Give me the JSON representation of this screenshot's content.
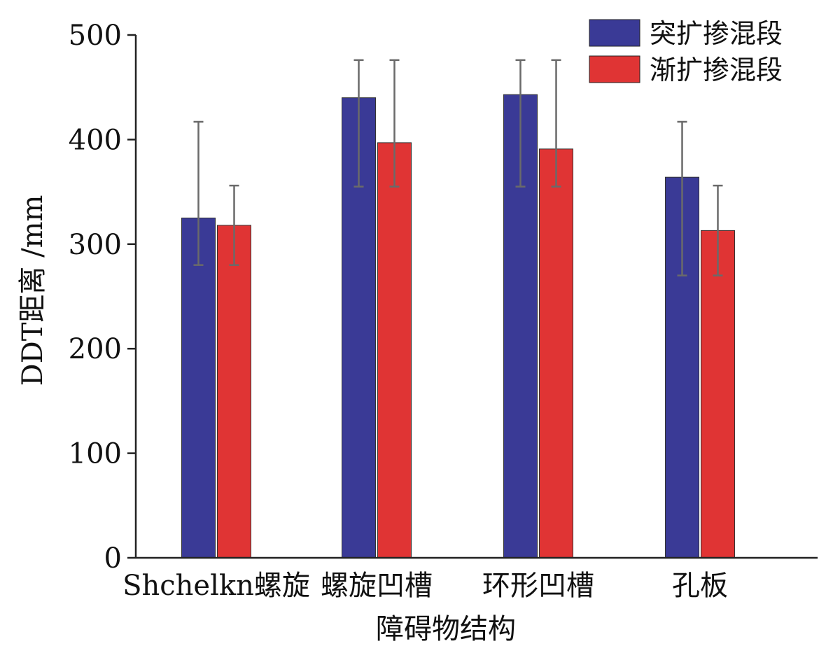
{
  "chart_data": {
    "type": "bar",
    "title": "",
    "xlabel": "障碍物结构",
    "ylabel": "DDT距离 /mm",
    "ylim": [
      0,
      500
    ],
    "yticks": [
      "0",
      "100",
      "200",
      "300",
      "400",
      "500"
    ],
    "categories": [
      "Shchelkn螺旋",
      "螺旋凹槽",
      "环形凹槽",
      "孔板"
    ],
    "series": [
      {
        "name": "突扩掺混段",
        "color": "#3a3a96",
        "values": [
          325,
          440,
          443,
          364
        ],
        "err_low": [
          280,
          355,
          355,
          270
        ],
        "err_high": [
          417,
          476,
          476,
          417
        ]
      },
      {
        "name": "渐扩掺混段",
        "color": "#e03434",
        "values": [
          318,
          397,
          391,
          313
        ],
        "err_low": [
          280,
          355,
          355,
          270
        ],
        "err_high": [
          356,
          476,
          476,
          356
        ]
      }
    ],
    "legend_position": "top-right",
    "grid": false
  }
}
